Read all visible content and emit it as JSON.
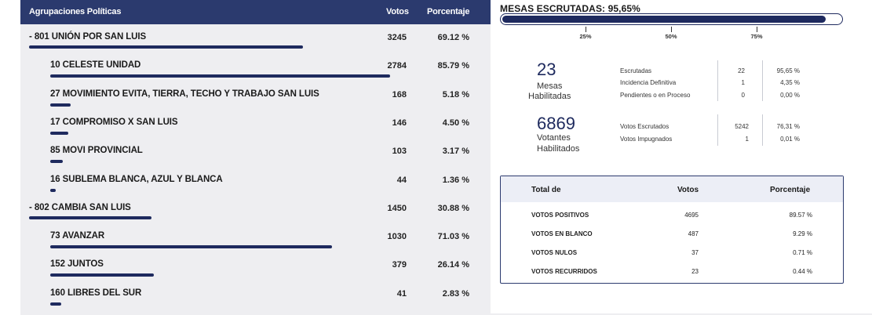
{
  "table": {
    "headers": {
      "name": "Agrupaciones Políticas",
      "votes": "Votos",
      "pct": "Porcentaje"
    },
    "rows": [
      {
        "kind": "party",
        "name": "-  801 UNIÓN POR SAN LUIS",
        "votes": "3245",
        "pct": "69.12 %",
        "share": 0.6912
      },
      {
        "kind": "child",
        "name": "10 CELESTE UNIDAD",
        "votes": "2784",
        "pct": "85.79 %",
        "share": 0.8579
      },
      {
        "kind": "child",
        "name": "27 MOVIMIENTO EVITA, TIERRA, TECHO Y TRABAJO SAN LUIS",
        "votes": "168",
        "pct": "5.18 %",
        "share": 0.0518
      },
      {
        "kind": "child",
        "name": "17 COMPROMISO X SAN LUIS",
        "votes": "146",
        "pct": "4.50 %",
        "share": 0.045
      },
      {
        "kind": "child",
        "name": "85 MOVI PROVINCIAL",
        "votes": "103",
        "pct": "3.17 %",
        "share": 0.0317
      },
      {
        "kind": "child",
        "name": "16 SUBLEMA BLANCA, AZUL Y BLANCA",
        "votes": "44",
        "pct": "1.36 %",
        "share": 0.0136
      },
      {
        "kind": "party",
        "name": "-  802 CAMBIA SAN LUIS",
        "votes": "1450",
        "pct": "30.88 %",
        "share": 0.3088
      },
      {
        "kind": "child",
        "name": "73 AVANZAR",
        "votes": "1030",
        "pct": "71.03 %",
        "share": 0.7103
      },
      {
        "kind": "child",
        "name": "152 JUNTOS",
        "votes": "379",
        "pct": "26.14 %",
        "share": 0.2614
      },
      {
        "kind": "child",
        "name": "160 LIBRES DEL SUR",
        "votes": "41",
        "pct": "2.83 %",
        "share": 0.0283
      }
    ]
  },
  "mesas": {
    "title": "MESAS ESCRUTADAS: 95,65%",
    "progress": 0.9565,
    "ticks": [
      "25%",
      "50%",
      "75%"
    ]
  },
  "stats": {
    "mesas_num": "23",
    "mesas_label1": "Mesas",
    "mesas_label2": "Habilitadas",
    "mesas_items": [
      {
        "label": "Escrutadas",
        "n": "22",
        "pct": "95,65 %"
      },
      {
        "label": "Incidencia Definitiva",
        "n": "1",
        "pct": "4,35 %"
      },
      {
        "label": "Pendientes o en Proceso",
        "n": "0",
        "pct": "0,00 %"
      }
    ],
    "votantes_num": "6869",
    "votantes_label1": "Votantes",
    "votantes_label2": "Habilitados",
    "votantes_items": [
      {
        "label": "Votos Escrutados",
        "n": "5242",
        "pct": "76,31 %"
      },
      {
        "label": "Votos Impugnados",
        "n": "1",
        "pct": "0,01 %"
      }
    ]
  },
  "summary": {
    "headers": {
      "total": "Total de",
      "votes": "Votos",
      "pct": "Porcentaje"
    },
    "rows": [
      {
        "label": "VOTOS POSITIVOS",
        "votes": "4695",
        "pct": "89.57 %"
      },
      {
        "label": "VOTOS EN BLANCO",
        "votes": "487",
        "pct": "9.29 %"
      },
      {
        "label": "VOTOS NULOS",
        "votes": "37",
        "pct": "0.71 %"
      },
      {
        "label": "VOTOS RECURRIDOS",
        "votes": "23",
        "pct": "0.44 %"
      }
    ]
  },
  "colors": {
    "accent": "#1e2a5e",
    "header_bg": "#2b3a6e",
    "table_bg": "#eeeef1"
  }
}
